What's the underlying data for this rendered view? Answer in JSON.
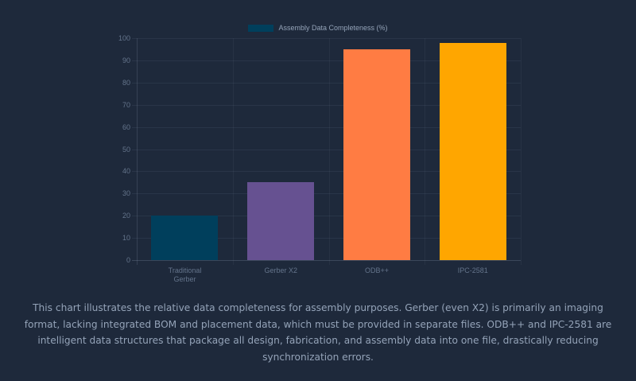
{
  "chart_data": {
    "type": "bar",
    "title": "",
    "categories": [
      "Traditional Gerber",
      "Gerber X2",
      "ODB++",
      "IPC-2581"
    ],
    "category_lines": [
      [
        "Traditional",
        "Gerber"
      ],
      [
        "Gerber X2"
      ],
      [
        "ODB++"
      ],
      [
        "IPC-2581"
      ]
    ],
    "series": [
      {
        "name": "Assembly Data Completeness (%)",
        "values": [
          20,
          35,
          95,
          98
        ],
        "colors": [
          "#003f5c",
          "#665191",
          "#ff7c43",
          "#ffa600"
        ]
      }
    ],
    "xlabel": "",
    "ylabel": "",
    "ylim": [
      0,
      100
    ],
    "yticks": [
      0,
      10,
      20,
      30,
      40,
      50,
      60,
      70,
      80,
      90,
      100
    ],
    "grid": true,
    "legend_position": "top"
  },
  "legend": {
    "label": "Assembly Data Completeness (%)",
    "swatch_color": "#003f5c"
  },
  "caption": "This chart illustrates the relative data completeness for assembly purposes. Gerber (even X2) is primarily an imaging format, lacking integrated BOM and placement data, which must be provided in separate files. ODB++ and IPC-2581 are intelligent data structures that package all design, fabrication, and assembly data into one file, drastically reducing synchronization errors."
}
